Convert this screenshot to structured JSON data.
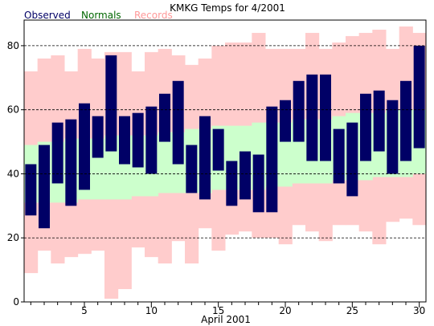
{
  "chart_data": {
    "type": "bar",
    "title": "KMKG Temps for 4/2001",
    "xlabel": "April 2001",
    "ylabel": "",
    "ylim": [
      0,
      88
    ],
    "yticks": [
      "0",
      "20",
      "40",
      "60",
      "80"
    ],
    "xticks": [
      "5",
      "10",
      "15",
      "20",
      "25",
      "30"
    ],
    "grid": "horizontal dashed lines at 20, 40, 60, 80",
    "days": [
      1,
      2,
      3,
      4,
      5,
      6,
      7,
      8,
      9,
      10,
      11,
      12,
      13,
      14,
      15,
      16,
      17,
      18,
      19,
      20,
      21,
      22,
      23,
      24,
      25,
      26,
      27,
      28,
      29,
      30
    ],
    "series": [
      {
        "name": "Records",
        "color": "#ffcccc",
        "high": [
          72,
          76,
          77,
          72,
          79,
          76,
          78,
          78,
          72,
          78,
          79,
          77,
          74,
          76,
          80,
          81,
          81,
          84,
          79,
          79,
          79,
          84,
          79,
          81,
          83,
          84,
          85,
          79,
          86,
          84
        ],
        "low": [
          9,
          16,
          12,
          14,
          15,
          16,
          1,
          4,
          17,
          14,
          12,
          19,
          12,
          23,
          16,
          21,
          22,
          20,
          20,
          18,
          24,
          22,
          19,
          24,
          24,
          22,
          18,
          25,
          26,
          24
        ]
      },
      {
        "name": "Normals",
        "color": "#ccffcc",
        "high": [
          49,
          50,
          50,
          51,
          51,
          51,
          52,
          52,
          52,
          52,
          53,
          53,
          54,
          54,
          55,
          55,
          55,
          56,
          56,
          56,
          57,
          57,
          57,
          58,
          59,
          59,
          59,
          60,
          60,
          60
        ],
        "low": [
          31,
          31,
          31,
          31,
          32,
          32,
          32,
          32,
          33,
          33,
          34,
          34,
          34,
          34,
          35,
          35,
          35,
          35,
          36,
          36,
          37,
          37,
          37,
          38,
          38,
          38,
          39,
          39,
          39,
          40
        ]
      },
      {
        "name": "Observed",
        "color": "#000066",
        "high": [
          43,
          49,
          56,
          57,
          62,
          58,
          77,
          58,
          59,
          61,
          65,
          69,
          49,
          58,
          54,
          44,
          47,
          46,
          61,
          63,
          69,
          71,
          71,
          54,
          56,
          65,
          66,
          63,
          69,
          80
        ],
        "low": [
          27,
          23,
          37,
          30,
          35,
          45,
          47,
          43,
          42,
          40,
          50,
          43,
          34,
          32,
          41,
          30,
          32,
          28,
          28,
          50,
          50,
          44,
          44,
          37,
          33,
          44,
          47,
          40,
          44,
          48
        ]
      }
    ],
    "legend": [
      {
        "label": "Observed",
        "color": "#000066"
      },
      {
        "label": "Normals",
        "color": "#006600"
      },
      {
        "label": "Records",
        "color": "#ff9999"
      }
    ]
  }
}
